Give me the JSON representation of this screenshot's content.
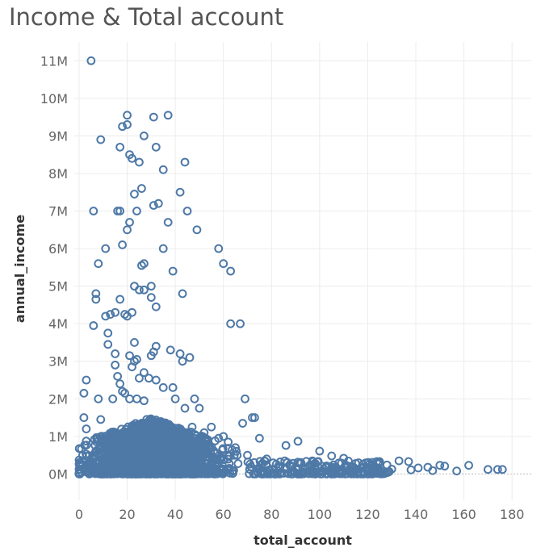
{
  "chart_data": {
    "type": "scatter",
    "title": "Income & Total account",
    "xlabel": "total_account",
    "ylabel": "annual_income",
    "xlim": [
      -2,
      188
    ],
    "ylim": [
      -700000,
      11500000
    ],
    "x_ticks": [
      0,
      20,
      40,
      60,
      80,
      100,
      120,
      140,
      160,
      180
    ],
    "x_tick_labels": [
      "0",
      "20",
      "40",
      "60",
      "80",
      "100",
      "120",
      "140",
      "160",
      "180"
    ],
    "y_ticks": [
      0,
      1000000,
      2000000,
      3000000,
      4000000,
      5000000,
      6000000,
      7000000,
      8000000,
      9000000,
      10000000,
      11000000
    ],
    "y_tick_labels": [
      "0M",
      "1M",
      "2M",
      "3M",
      "4M",
      "5M",
      "6M",
      "7M",
      "8M",
      "9M",
      "10M",
      "11M"
    ],
    "grid": true,
    "marker_color": "#4e79a7",
    "series": [
      {
        "points": [
          [
            5,
            11000000
          ],
          [
            20,
            9550000
          ],
          [
            31,
            9500000
          ],
          [
            37,
            9550000
          ],
          [
            18,
            9250000
          ],
          [
            20,
            9300000
          ],
          [
            9,
            8900000
          ],
          [
            27,
            9000000
          ],
          [
            17,
            8700000
          ],
          [
            32,
            8700000
          ],
          [
            21,
            8500000
          ],
          [
            22,
            8400000
          ],
          [
            25,
            8300000
          ],
          [
            44,
            8300000
          ],
          [
            35,
            8100000
          ],
          [
            26,
            7600000
          ],
          [
            23,
            7450000
          ],
          [
            42,
            7500000
          ],
          [
            6,
            7000000
          ],
          [
            16,
            7000000
          ],
          [
            17,
            7000000
          ],
          [
            24,
            7000000
          ],
          [
            31,
            7150000
          ],
          [
            33,
            7200000
          ],
          [
            45,
            7000000
          ],
          [
            21,
            6700000
          ],
          [
            37,
            6700000
          ],
          [
            20,
            6500000
          ],
          [
            49,
            6500000
          ],
          [
            11,
            6000000
          ],
          [
            18,
            6100000
          ],
          [
            35,
            6000000
          ],
          [
            58,
            6000000
          ],
          [
            8,
            5600000
          ],
          [
            26,
            5550000
          ],
          [
            27,
            5600000
          ],
          [
            39,
            5400000
          ],
          [
            60,
            5600000
          ],
          [
            63,
            5400000
          ],
          [
            23,
            5000000
          ],
          [
            30,
            5000000
          ],
          [
            25,
            4900000
          ],
          [
            27,
            4900000
          ],
          [
            7,
            4800000
          ],
          [
            7,
            4650000
          ],
          [
            17,
            4650000
          ],
          [
            30,
            4700000
          ],
          [
            32,
            4450000
          ],
          [
            43,
            4800000
          ],
          [
            13,
            4250000
          ],
          [
            15,
            4300000
          ],
          [
            19,
            4250000
          ],
          [
            20,
            4200000
          ],
          [
            22,
            4300000
          ],
          [
            6,
            3950000
          ],
          [
            11,
            4200000
          ],
          [
            63,
            4000000
          ],
          [
            67,
            4000000
          ],
          [
            12,
            3750000
          ],
          [
            12,
            3450000
          ],
          [
            23,
            3500000
          ],
          [
            32,
            3400000
          ],
          [
            38,
            3300000
          ],
          [
            46,
            3100000
          ],
          [
            15,
            3200000
          ],
          [
            21,
            3150000
          ],
          [
            30,
            3150000
          ],
          [
            31,
            3250000
          ],
          [
            42,
            3200000
          ],
          [
            23,
            3000000
          ],
          [
            24,
            3050000
          ],
          [
            27,
            2700000
          ],
          [
            15,
            2900000
          ],
          [
            22,
            2850000
          ],
          [
            43,
            3000000
          ],
          [
            3,
            2500000
          ],
          [
            16,
            2600000
          ],
          [
            17,
            2400000
          ],
          [
            25,
            2550000
          ],
          [
            29,
            2550000
          ],
          [
            32,
            2500000
          ],
          [
            35,
            2300000
          ],
          [
            39,
            2300000
          ],
          [
            2,
            2150000
          ],
          [
            8,
            2000000
          ],
          [
            14,
            2000000
          ],
          [
            18,
            2200000
          ],
          [
            19,
            2150000
          ],
          [
            21,
            2000000
          ],
          [
            24,
            2000000
          ],
          [
            27,
            1950000
          ],
          [
            40,
            2000000
          ],
          [
            48,
            2000000
          ],
          [
            69,
            2000000
          ],
          [
            2,
            1500000
          ],
          [
            9,
            1450000
          ],
          [
            44,
            1750000
          ],
          [
            50,
            1750000
          ],
          [
            72,
            1500000
          ],
          [
            73,
            1500000
          ],
          [
            55,
            1250000
          ],
          [
            68,
            1350000
          ],
          [
            3,
            1200000
          ],
          [
            60,
            1000000
          ],
          [
            75,
            950000
          ],
          [
            91,
            870000
          ],
          [
            86,
            760000
          ],
          [
            100,
            610000
          ],
          [
            105,
            480000
          ],
          [
            110,
            420000
          ],
          [
            97,
            350000
          ],
          [
            115,
            280000
          ],
          [
            118,
            250000
          ],
          [
            122,
            310000
          ],
          [
            128,
            240000
          ],
          [
            133,
            350000
          ],
          [
            137,
            330000
          ],
          [
            141,
            160000
          ],
          [
            145,
            180000
          ],
          [
            150,
            230000
          ],
          [
            152,
            210000
          ],
          [
            162,
            230000
          ],
          [
            170,
            120000
          ],
          [
            174,
            120000
          ],
          [
            176,
            120000
          ],
          [
            157,
            80000
          ],
          [
            147,
            90000
          ],
          [
            138,
            110000
          ],
          [
            130,
            130000
          ],
          [
            125,
            90000
          ],
          [
            120,
            70000
          ],
          [
            112,
            60000
          ],
          [
            108,
            100000
          ],
          [
            95,
            150000
          ],
          [
            88,
            200000
          ],
          [
            82,
            260000
          ],
          [
            78,
            400000
          ],
          [
            70,
            500000
          ],
          [
            65,
            700000
          ],
          [
            62,
            850000
          ],
          [
            58,
            950000
          ],
          [
            52,
            1100000
          ],
          [
            47,
            1250000
          ]
        ]
      }
    ],
    "dense_region": {
      "x": [
        0,
        70
      ],
      "y": [
        0,
        1500000
      ],
      "peak_x": 30
    }
  }
}
